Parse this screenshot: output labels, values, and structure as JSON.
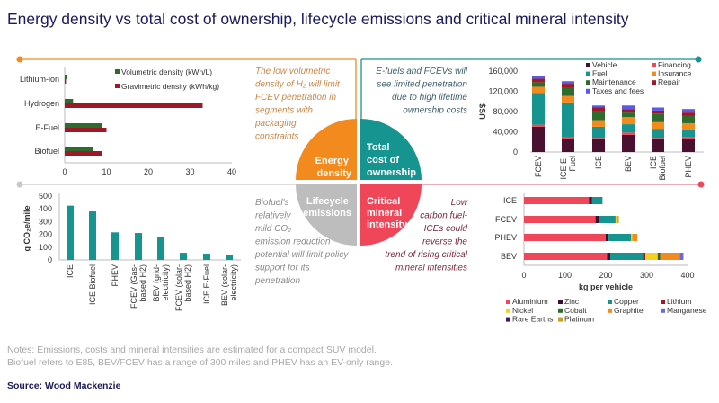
{
  "title": "Energy density vs total cost of ownership, lifecycle emissions and critical mineral intensity",
  "quadrants": {
    "energy": {
      "label": [
        "Energy",
        "density"
      ],
      "note": [
        "The low volumetric",
        "density of H₂ will limit",
        "FCEV penetration in",
        "segments with",
        "packaging",
        "constraints"
      ],
      "color": "#f28a1e",
      "note_color": "#c8874a"
    },
    "tco": {
      "label": [
        "Total",
        "cost of",
        "ownership"
      ],
      "note": [
        "E-fuels and FCEVs will",
        "see limited penetration",
        "due to high lifetime",
        "ownership costs"
      ],
      "color": "#16948f",
      "note_color": "#3d5f6b"
    },
    "emissions": {
      "label": [
        "Lifecycle",
        "emissions"
      ],
      "note": [
        "Biofuel's",
        "relatively",
        "mild CO₂",
        "emission reduction",
        "potential will limit policy",
        "support for its",
        "penetration"
      ],
      "color": "#bdbdbd",
      "note_color": "#8a8a8a"
    },
    "minerals": {
      "label": [
        "Critical",
        "mineral",
        "intensity"
      ],
      "note": [
        "Low",
        "carbon fuel-",
        "ICEs could",
        "reverse the",
        "trend of rising critical",
        "mineral intensities"
      ],
      "color": "#f0465a",
      "note_color": "#7a2a3a"
    }
  },
  "footer": {
    "notes": [
      "Notes: Emissions, costs and mineral intensities are estimated for a compact SUV model.",
      "Biofuel refers to E85, BEV/FCEV has a range of 300 miles and PHEV has an EV-only range."
    ],
    "source": "Source: Wood Mackenzie"
  },
  "chart_data": [
    {
      "type": "bar",
      "orientation": "horizontal",
      "categories": [
        "Lithium-ion",
        "Hydrogen",
        "E-Fuel",
        "Biofuel"
      ],
      "series": [
        {
          "name": "Volumetric density (kWh/L)",
          "color": "#2e6b2e",
          "values": [
            0.5,
            2,
            9,
            6.7
          ]
        },
        {
          "name": "Gravimetric density (kWh/kg)",
          "color": "#a01828",
          "values": [
            0.3,
            33,
            10,
            9
          ]
        }
      ],
      "xlim": [
        0,
        40
      ],
      "xticks": [
        "0",
        "10",
        "20",
        "30",
        "40"
      ],
      "legend": "top-right"
    },
    {
      "type": "bar",
      "stacked": true,
      "categories": [
        "FCEV",
        "ICE E-Fuel",
        "ICE",
        "BEV",
        "ICE Biofuel",
        "PHEV"
      ],
      "category_lines": [
        [
          "FCEV"
        ],
        [
          "ICE E-",
          "Fuel"
        ],
        [
          "ICE"
        ],
        [
          "BEV"
        ],
        [
          "ICE",
          "Biofuel"
        ],
        [
          "PHEV"
        ]
      ],
      "ylabel": "US$",
      "ylim": [
        0,
        160000
      ],
      "yticks": [
        "0",
        "40,000",
        "80,000",
        "120,000",
        "160,000"
      ],
      "series": [
        {
          "name": "Vehicle",
          "color": "#4a1030",
          "values": [
            50000,
            25500,
            25000,
            34000,
            25000,
            26000
          ]
        },
        {
          "name": "Financing",
          "color": "#f0465a",
          "values": [
            4000,
            3500,
            3000,
            4500,
            3000,
            4000
          ]
        },
        {
          "name": "Fuel",
          "color": "#16948f",
          "values": [
            63000,
            69000,
            22000,
            16500,
            18000,
            15000
          ]
        },
        {
          "name": "Insurance",
          "color": "#f28a1e",
          "values": [
            12000,
            13000,
            13000,
            14000,
            13000,
            12000
          ]
        },
        {
          "name": "Maintenance",
          "color": "#2e6b2e",
          "values": [
            9000,
            17000,
            18000,
            9000,
            17000,
            15000
          ]
        },
        {
          "name": "Repair",
          "color": "#a01828",
          "values": [
            7000,
            7000,
            7000,
            7000,
            6000,
            6000
          ]
        },
        {
          "name": "Taxes and fees",
          "color": "#5a5ae6",
          "values": [
            6000,
            5000,
            4000,
            7000,
            6000,
            7000
          ]
        }
      ],
      "legend": "top"
    },
    {
      "type": "bar",
      "categories": [
        "ICE",
        "ICE Biofuel",
        "PHEV",
        "FCEV (Gas-based H2)",
        "BEV (grid-electricity)",
        "FCEV (solar-based H2)",
        "ICE E-Fuel",
        "BEV (solar-electricity)"
      ],
      "category_lines": [
        [
          "ICE"
        ],
        [
          "ICE Biofuel"
        ],
        [
          "PHEV"
        ],
        [
          "FCEV (Gas-",
          "based H2)"
        ],
        [
          "BEV (grid-",
          "electricity)"
        ],
        [
          "FCEV (solar-",
          "based H2)"
        ],
        [
          "ICE E-Fuel"
        ],
        [
          "BEV (solar-",
          "electricity)"
        ]
      ],
      "values": [
        425,
        380,
        216,
        211,
        178,
        56,
        49,
        38
      ],
      "color": "#16948f",
      "ylabel": "g CO₂e/mile",
      "ylim": [
        0,
        500
      ],
      "yticks": [
        "0",
        "100",
        "200",
        "300",
        "400",
        "500"
      ]
    },
    {
      "type": "bar",
      "orientation": "horizontal",
      "stacked": true,
      "categories": [
        "ICE",
        "FCEV",
        "PHEV",
        "BEV"
      ],
      "xlabel": "kg per vehicle",
      "xlim": [
        0,
        400
      ],
      "xticks": [
        "0",
        "100",
        "200",
        "300",
        "400"
      ],
      "series": [
        {
          "name": "Aluminium",
          "color": "#f0465a",
          "values": [
            159,
            175,
            200,
            203
          ]
        },
        {
          "name": "Zinc",
          "color": "#3a1030",
          "values": [
            7,
            8,
            7,
            8
          ]
        },
        {
          "name": "Copper",
          "color": "#16948f",
          "values": [
            26,
            41,
            55,
            80
          ]
        },
        {
          "name": "Lithium",
          "color": "#a01828",
          "values": [
            0,
            0,
            0,
            6
          ]
        },
        {
          "name": "Nickel",
          "color": "#f5d020",
          "values": [
            0,
            2,
            3,
            30
          ]
        },
        {
          "name": "Cobalt",
          "color": "#2e6b2e",
          "values": [
            0,
            0,
            0,
            6
          ]
        },
        {
          "name": "Graphite",
          "color": "#f28a1e",
          "values": [
            0,
            4,
            12,
            48
          ]
        },
        {
          "name": "Manganese",
          "color": "#6a6ae0",
          "values": [
            0,
            0,
            0,
            9
          ]
        },
        {
          "name": "Rare Earths",
          "color": "#3a1a6a",
          "values": [
            0,
            0,
            0,
            0
          ]
        },
        {
          "name": "Platinum",
          "color": "#c8a020",
          "values": [
            0,
            2,
            0,
            0
          ]
        }
      ],
      "legend": "bottom"
    }
  ]
}
